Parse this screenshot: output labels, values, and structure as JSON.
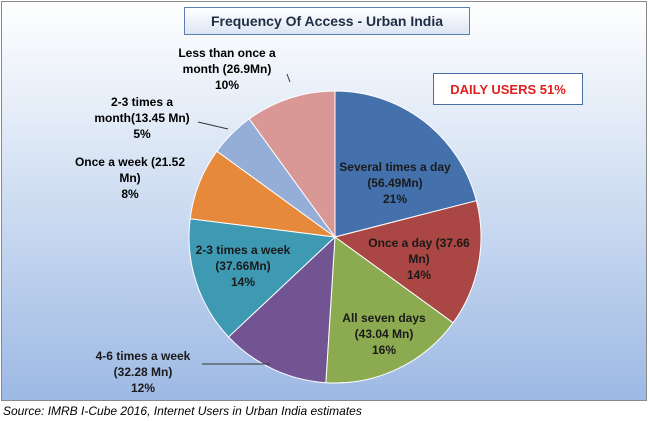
{
  "chart_data": {
    "type": "pie",
    "title": "Frequency Of Access - Urban India",
    "slices": [
      {
        "label": "Several times a day (56.49Mn) 21%",
        "lines": [
          "Several times a day",
          "(56.49Mn)",
          "21%"
        ],
        "value": 56.49,
        "percent": 21,
        "color": "#4471ac"
      },
      {
        "label": "Once a day (37.66 Mn) 14%",
        "lines": [
          "Once a day (37.66",
          "Mn)",
          "14%"
        ],
        "value": 37.66,
        "percent": 14,
        "color": "#aa4643"
      },
      {
        "label": "All seven days (43.04 Mn) 16%",
        "lines": [
          "All seven days",
          "(43.04 Mn)",
          "16%"
        ],
        "value": 43.04,
        "percent": 16,
        "color": "#8cab50"
      },
      {
        "label": "4-6 times a week (32.28 Mn) 12%",
        "lines": [
          "4-6 times a week",
          "(32.28 Mn)",
          "12%"
        ],
        "value": 32.28,
        "percent": 12,
        "color": "#725492"
      },
      {
        "label": "2-3 times a week (37.66Mn) 14%",
        "lines": [
          "2-3 times a week",
          "(37.66Mn)",
          "14%"
        ],
        "value": 37.66,
        "percent": 14,
        "color": "#3e99b2"
      },
      {
        "label": "Once a week (21.52 Mn) 8%",
        "lines": [
          "Once a week (21.52",
          "Mn)",
          "8%"
        ],
        "value": 21.52,
        "percent": 8,
        "color": "#e6893a"
      },
      {
        "label": "2-3 times a month(13.45 Mn) 5%",
        "lines": [
          "2-3 times a",
          "month(13.45 Mn)",
          "5%"
        ],
        "value": 13.45,
        "percent": 5,
        "color": "#95aed8"
      },
      {
        "label": "Less than once a month (26.9Mn) 10%",
        "lines": [
          "Less than once a",
          "month (26.9Mn)",
          "10%"
        ],
        "value": 26.9,
        "percent": 10,
        "color": "#d99795"
      }
    ]
  },
  "annotation": {
    "daily_users": "DAILY USERS 51%"
  },
  "source": "Source: IMRB I-Cube 2016, Internet Users in Urban India estimates"
}
